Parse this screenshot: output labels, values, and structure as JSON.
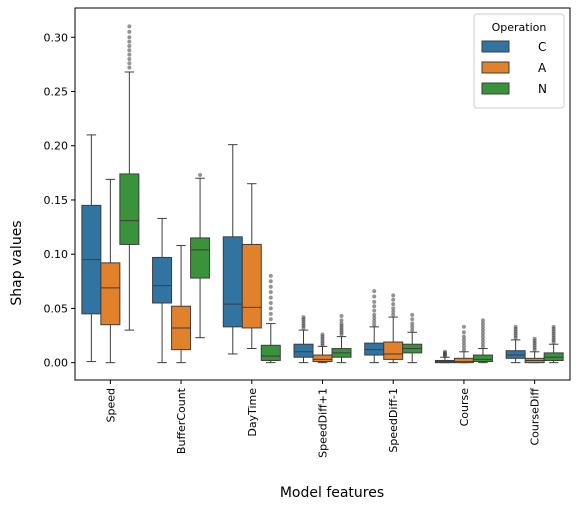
{
  "chart_data": {
    "type": "boxplot",
    "xlabel": "Model features",
    "ylabel": "Shap values",
    "ylim": [
      -0.016,
      0.327
    ],
    "yticks": [
      "0.00",
      "0.05",
      "0.10",
      "0.15",
      "0.20",
      "0.25",
      "0.30"
    ],
    "ytick_values": [
      0.0,
      0.05,
      0.1,
      0.15,
      0.2,
      0.25,
      0.3
    ],
    "grid": false,
    "legend": {
      "title": "Operation",
      "placement": "top-right"
    },
    "categories": [
      "Speed",
      "BufferCount",
      "DayTime",
      "SpeedDiff+1",
      "SpeedDiff-1",
      "Course",
      "CourseDiff"
    ],
    "series": [
      {
        "name": "C",
        "color": "#3274a1",
        "boxes": [
          {
            "whislo": 0.001,
            "q1": 0.045,
            "med": 0.095,
            "q3": 0.145,
            "whishi": 0.21,
            "fliers": []
          },
          {
            "whislo": 0.0,
            "q1": 0.055,
            "med": 0.071,
            "q3": 0.097,
            "whishi": 0.133,
            "fliers": []
          },
          {
            "whislo": 0.008,
            "q1": 0.033,
            "med": 0.054,
            "q3": 0.116,
            "whishi": 0.201,
            "fliers": []
          },
          {
            "whislo": 0.0,
            "q1": 0.005,
            "med": 0.01,
            "q3": 0.017,
            "whishi": 0.03,
            "fliers": [
              0.032,
              0.034,
              0.036,
              0.038,
              0.04,
              0.042
            ]
          },
          {
            "whislo": 0.0,
            "q1": 0.007,
            "med": 0.012,
            "q3": 0.018,
            "whishi": 0.033,
            "fliers": [
              0.035,
              0.038,
              0.041,
              0.044,
              0.048,
              0.052,
              0.056,
              0.061,
              0.066
            ]
          },
          {
            "whislo": 0.0,
            "q1": 0.0,
            "med": 0.001,
            "q3": 0.002,
            "whishi": 0.005,
            "fliers": [
              0.006,
              0.007,
              0.008,
              0.009,
              0.01
            ]
          },
          {
            "whislo": 0.0,
            "q1": 0.004,
            "med": 0.007,
            "q3": 0.011,
            "whishi": 0.021,
            "fliers": [
              0.023,
              0.025,
              0.027,
              0.029,
              0.031,
              0.033
            ]
          }
        ]
      },
      {
        "name": "A",
        "color": "#e1812c",
        "boxes": [
          {
            "whislo": 0.0,
            "q1": 0.035,
            "med": 0.069,
            "q3": 0.092,
            "whishi": 0.169,
            "fliers": []
          },
          {
            "whislo": 0.0,
            "q1": 0.012,
            "med": 0.032,
            "q3": 0.052,
            "whishi": 0.108,
            "fliers": []
          },
          {
            "whislo": 0.013,
            "q1": 0.032,
            "med": 0.051,
            "q3": 0.109,
            "whishi": 0.165,
            "fliers": []
          },
          {
            "whislo": 0.0,
            "q1": 0.001,
            "med": 0.003,
            "q3": 0.007,
            "whishi": 0.015,
            "fliers": [
              0.016,
              0.018,
              0.02,
              0.022,
              0.024,
              0.026
            ]
          },
          {
            "whislo": 0.0,
            "q1": 0.003,
            "med": 0.008,
            "q3": 0.019,
            "whishi": 0.042,
            "fliers": [
              0.044,
              0.047,
              0.05,
              0.054,
              0.058,
              0.062
            ]
          },
          {
            "whislo": 0.0,
            "q1": 0.0,
            "med": 0.001,
            "q3": 0.004,
            "whishi": 0.01,
            "fliers": [
              0.012,
              0.015,
              0.018,
              0.021,
              0.024,
              0.028,
              0.033
            ]
          },
          {
            "whislo": 0.0,
            "q1": 0.0,
            "med": 0.002,
            "q3": 0.004,
            "whishi": 0.01,
            "fliers": [
              0.012,
              0.014,
              0.016,
              0.018,
              0.02,
              0.022
            ]
          }
        ]
      },
      {
        "name": "N",
        "color": "#3a923a",
        "boxes": [
          {
            "whislo": 0.03,
            "q1": 0.109,
            "med": 0.131,
            "q3": 0.174,
            "whishi": 0.268,
            "fliers": [
              0.272,
              0.276,
              0.28,
              0.284,
              0.288,
              0.292,
              0.296,
              0.3,
              0.305,
              0.31
            ]
          },
          {
            "whislo": 0.023,
            "q1": 0.078,
            "med": 0.104,
            "q3": 0.115,
            "whishi": 0.17,
            "fliers": [
              0.173
            ]
          },
          {
            "whislo": 0.0,
            "q1": 0.002,
            "med": 0.006,
            "q3": 0.016,
            "whishi": 0.036,
            "fliers": [
              0.04,
              0.045,
              0.05,
              0.055,
              0.06,
              0.065,
              0.07,
              0.075,
              0.08
            ]
          },
          {
            "whislo": 0.0,
            "q1": 0.005,
            "med": 0.009,
            "q3": 0.013,
            "whishi": 0.024,
            "fliers": [
              0.026,
              0.028,
              0.03,
              0.032,
              0.034,
              0.036,
              0.039,
              0.043
            ]
          },
          {
            "whislo": 0.0,
            "q1": 0.009,
            "med": 0.013,
            "q3": 0.017,
            "whishi": 0.028,
            "fliers": [
              0.03,
              0.033,
              0.036,
              0.04,
              0.044
            ]
          },
          {
            "whislo": 0.0,
            "q1": 0.001,
            "med": 0.003,
            "q3": 0.007,
            "whishi": 0.013,
            "fliers": [
              0.015,
              0.018,
              0.021,
              0.024,
              0.027,
              0.03,
              0.033,
              0.036,
              0.039
            ]
          },
          {
            "whislo": 0.0,
            "q1": 0.002,
            "med": 0.005,
            "q3": 0.009,
            "whishi": 0.017,
            "fliers": [
              0.019,
              0.021,
              0.023,
              0.025,
              0.027,
              0.029,
              0.031,
              0.033
            ]
          }
        ]
      }
    ]
  }
}
